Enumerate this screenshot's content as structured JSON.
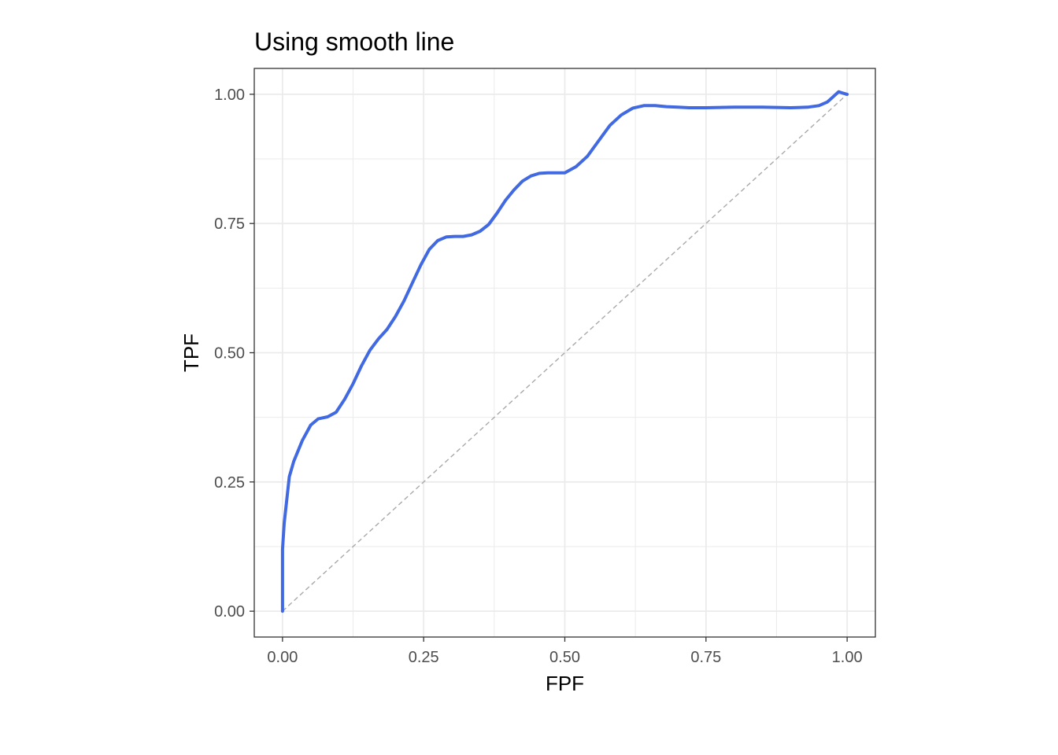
{
  "chart_data": {
    "type": "line",
    "title": "Using smooth line",
    "xlabel": "FPF",
    "ylabel": "TPF",
    "xlim": [
      -0.05,
      1.05
    ],
    "ylim": [
      -0.05,
      1.05
    ],
    "x_ticks": [
      "0.00",
      "0.25",
      "0.50",
      "0.75",
      "1.00"
    ],
    "y_ticks": [
      "0.00",
      "0.25",
      "0.50",
      "0.75",
      "1.00"
    ],
    "grid": true,
    "legend": "none",
    "colors": {
      "curve": "#4169E1",
      "reference": "#a9a9a9",
      "grid": "#ebebeb",
      "panel_border": "#333333"
    },
    "series": [
      {
        "role": "smooth-roc-curve",
        "x": [
          0.0,
          0.0,
          0.003,
          0.012,
          0.02,
          0.035,
          0.05,
          0.063,
          0.08,
          0.095,
          0.11,
          0.125,
          0.14,
          0.155,
          0.17,
          0.185,
          0.2,
          0.215,
          0.23,
          0.245,
          0.26,
          0.275,
          0.29,
          0.305,
          0.32,
          0.335,
          0.35,
          0.365,
          0.38,
          0.395,
          0.41,
          0.425,
          0.44,
          0.455,
          0.47,
          0.485,
          0.5,
          0.52,
          0.54,
          0.56,
          0.58,
          0.6,
          0.62,
          0.64,
          0.66,
          0.68,
          0.7,
          0.72,
          0.75,
          0.8,
          0.85,
          0.9,
          0.93,
          0.95,
          0.965,
          0.975,
          0.985,
          0.99,
          1.0
        ],
        "y": [
          0.0,
          0.12,
          0.17,
          0.26,
          0.29,
          0.33,
          0.36,
          0.372,
          0.376,
          0.385,
          0.41,
          0.44,
          0.475,
          0.505,
          0.527,
          0.545,
          0.57,
          0.6,
          0.635,
          0.67,
          0.7,
          0.717,
          0.724,
          0.725,
          0.725,
          0.728,
          0.735,
          0.748,
          0.77,
          0.795,
          0.815,
          0.832,
          0.842,
          0.847,
          0.848,
          0.848,
          0.848,
          0.86,
          0.88,
          0.91,
          0.94,
          0.96,
          0.973,
          0.978,
          0.978,
          0.976,
          0.975,
          0.974,
          0.974,
          0.975,
          0.975,
          0.974,
          0.975,
          0.978,
          0.985,
          0.995,
          1.005,
          1.003,
          1.0
        ]
      },
      {
        "role": "reference-diagonal",
        "x": [
          0.0,
          1.0
        ],
        "y": [
          0.0,
          1.0
        ]
      }
    ]
  }
}
